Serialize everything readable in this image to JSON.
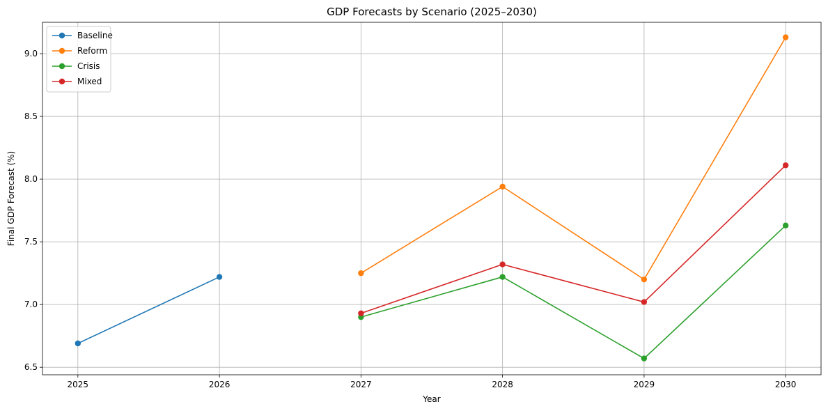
{
  "chart_data": {
    "type": "line",
    "title": "GDP Forecasts by Scenario (2025–2030)",
    "xlabel": "Year",
    "ylabel": "Final GDP Forecast (%)",
    "x": [
      2025,
      2026,
      2027,
      2028,
      2029,
      2030
    ],
    "xlim": [
      2024.75,
      2030.25
    ],
    "ylim": [
      6.44,
      9.25
    ],
    "yticks": [
      6.5,
      7.0,
      7.5,
      8.0,
      8.5,
      9.0
    ],
    "ytick_labels": [
      "6.5",
      "7.0",
      "7.5",
      "8.0",
      "8.5",
      "9.0"
    ],
    "xtick_labels": [
      "2025",
      "2026",
      "2027",
      "2028",
      "2029",
      "2030"
    ],
    "grid": true,
    "legend_position": "top-left",
    "series": [
      {
        "name": "Baseline",
        "color": "#1f77b4",
        "values": [
          6.69,
          7.22,
          null,
          null,
          null,
          null
        ]
      },
      {
        "name": "Reform",
        "color": "#ff7f0e",
        "values": [
          null,
          null,
          7.25,
          7.94,
          7.2,
          9.13
        ]
      },
      {
        "name": "Crisis",
        "color": "#2ca02c",
        "values": [
          null,
          null,
          6.9,
          7.22,
          6.57,
          7.63
        ]
      },
      {
        "name": "Mixed",
        "color": "#d62728",
        "values": [
          null,
          null,
          6.93,
          7.32,
          7.02,
          8.11
        ]
      }
    ]
  }
}
